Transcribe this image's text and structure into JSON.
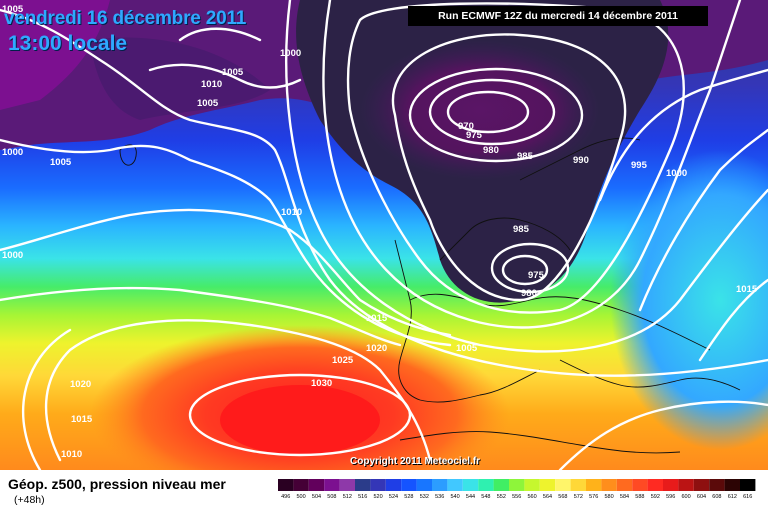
{
  "header": {
    "date": "vendredi 16 décembre 2011",
    "time": "13:00 locale",
    "run": "Run ECMWF 12Z du mercredi 14 décembre 2011"
  },
  "copyright": "Copyright 2011 Meteociel.fr",
  "footer": {
    "title": "Géop. z500, pression niveau mer",
    "subtitle": "(+48h)"
  },
  "legend": {
    "values": [
      "496",
      "500",
      "504",
      "508",
      "512",
      "516",
      "520",
      "524",
      "528",
      "532",
      "536",
      "540",
      "544",
      "548",
      "552",
      "556",
      "560",
      "564",
      "568",
      "572",
      "576",
      "580",
      "584",
      "588",
      "592",
      "596",
      "600",
      "604",
      "608",
      "612",
      "616"
    ],
    "colors": [
      "#2a0022",
      "#450036",
      "#62005c",
      "#7c1090",
      "#8e39a9",
      "#2b3c8a",
      "#3436b7",
      "#1f3ee6",
      "#1554ff",
      "#1876ff",
      "#2c9dff",
      "#41c8ff",
      "#3ae3e8",
      "#2ff0b0",
      "#41ee64",
      "#8ef53a",
      "#c6f72e",
      "#eef32d",
      "#fff56a",
      "#ffd838",
      "#ffb21a",
      "#ff8e1c",
      "#ff6a1f",
      "#ff4a24",
      "#ff2a22",
      "#e81b1b",
      "#bb1414",
      "#8e1010",
      "#5b0a0a",
      "#2c0404",
      "#000000"
    ]
  },
  "isobars": [
    {
      "label": "1005"
    },
    {
      "label": "1000"
    },
    {
      "label": "1005"
    },
    {
      "label": "1010"
    },
    {
      "label": "1005"
    },
    {
      "label": "1000"
    },
    {
      "label": "1005"
    },
    {
      "label": "1000"
    },
    {
      "label": "1010"
    },
    {
      "label": "970"
    },
    {
      "label": "975"
    },
    {
      "label": "980"
    },
    {
      "label": "985"
    },
    {
      "label": "990"
    },
    {
      "label": "995"
    },
    {
      "label": "1000"
    },
    {
      "label": "985"
    },
    {
      "label": "975"
    },
    {
      "label": "980"
    },
    {
      "label": "1015"
    },
    {
      "label": "1015"
    },
    {
      "label": "1020"
    },
    {
      "label": "1005"
    },
    {
      "label": "1025"
    },
    {
      "label": "1030"
    },
    {
      "label": "1020"
    },
    {
      "label": "1015"
    },
    {
      "label": "1010"
    }
  ],
  "colors": {
    "isobar_line": "#ffffff",
    "deep_low": "#2c2246",
    "purple": "#5a1566",
    "blue": "#1b3be0",
    "high_core": "#ff2222"
  }
}
